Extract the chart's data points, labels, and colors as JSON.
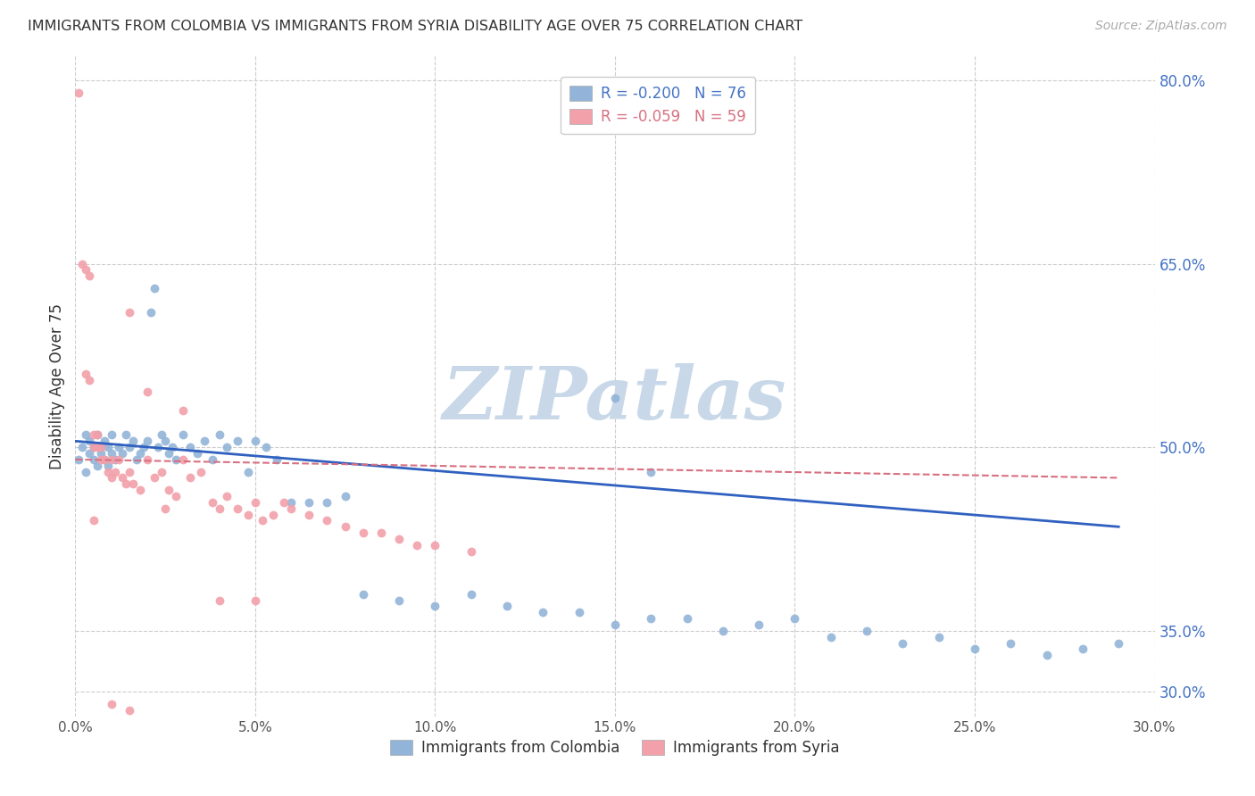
{
  "title": "IMMIGRANTS FROM COLOMBIA VS IMMIGRANTS FROM SYRIA DISABILITY AGE OVER 75 CORRELATION CHART",
  "source": "Source: ZipAtlas.com",
  "ylabel": "Disability Age Over 75",
  "xlim": [
    0.0,
    0.3
  ],
  "ylim": [
    0.28,
    0.82
  ],
  "xticks": [
    0.0,
    0.05,
    0.1,
    0.15,
    0.2,
    0.25,
    0.3
  ],
  "xtick_labels": [
    "0.0%",
    "5.0%",
    "10.0%",
    "15.0%",
    "20.0%",
    "25.0%",
    "30.0%"
  ],
  "yticks_right": [
    0.3,
    0.35,
    0.5,
    0.65,
    0.8
  ],
  "ytick_right_labels": [
    "30.0%",
    "35.0%",
    "50.0%",
    "65.0%",
    "80.0%"
  ],
  "colombia_color": "#92b4d8",
  "syria_color": "#f2a0aa",
  "colombia_R": -0.2,
  "colombia_N": 76,
  "syria_R": -0.059,
  "syria_N": 59,
  "trend_colombia_color": "#3060c0",
  "trend_syria_color": "#d87080",
  "watermark": "ZIPatlas",
  "watermark_color": "#c8d8e8",
  "legend_label_colombia": "Immigrants from Colombia",
  "legend_label_syria": "Immigrants from Syria",
  "colombia_x": [
    0.001,
    0.002,
    0.003,
    0.003,
    0.004,
    0.004,
    0.005,
    0.005,
    0.006,
    0.006,
    0.007,
    0.007,
    0.008,
    0.008,
    0.009,
    0.009,
    0.01,
    0.01,
    0.011,
    0.012,
    0.013,
    0.014,
    0.015,
    0.016,
    0.017,
    0.018,
    0.019,
    0.02,
    0.021,
    0.022,
    0.023,
    0.024,
    0.025,
    0.026,
    0.027,
    0.028,
    0.03,
    0.032,
    0.034,
    0.036,
    0.038,
    0.04,
    0.042,
    0.045,
    0.048,
    0.05,
    0.053,
    0.056,
    0.06,
    0.065,
    0.07,
    0.075,
    0.08,
    0.09,
    0.1,
    0.11,
    0.12,
    0.13,
    0.14,
    0.15,
    0.16,
    0.17,
    0.18,
    0.19,
    0.2,
    0.21,
    0.22,
    0.23,
    0.24,
    0.25,
    0.26,
    0.27,
    0.28,
    0.29,
    0.15,
    0.16
  ],
  "colombia_y": [
    0.49,
    0.5,
    0.48,
    0.51,
    0.495,
    0.505,
    0.49,
    0.5,
    0.485,
    0.51,
    0.5,
    0.495,
    0.49,
    0.505,
    0.485,
    0.5,
    0.495,
    0.51,
    0.49,
    0.5,
    0.495,
    0.51,
    0.5,
    0.505,
    0.49,
    0.495,
    0.5,
    0.505,
    0.61,
    0.63,
    0.5,
    0.51,
    0.505,
    0.495,
    0.5,
    0.49,
    0.51,
    0.5,
    0.495,
    0.505,
    0.49,
    0.51,
    0.5,
    0.505,
    0.48,
    0.505,
    0.5,
    0.49,
    0.455,
    0.455,
    0.455,
    0.46,
    0.38,
    0.375,
    0.37,
    0.38,
    0.37,
    0.365,
    0.365,
    0.355,
    0.36,
    0.36,
    0.35,
    0.355,
    0.36,
    0.345,
    0.35,
    0.34,
    0.345,
    0.335,
    0.34,
    0.33,
    0.335,
    0.34,
    0.54,
    0.48
  ],
  "syria_x": [
    0.001,
    0.002,
    0.003,
    0.003,
    0.004,
    0.004,
    0.005,
    0.005,
    0.006,
    0.006,
    0.007,
    0.007,
    0.008,
    0.009,
    0.01,
    0.01,
    0.011,
    0.012,
    0.013,
    0.014,
    0.015,
    0.016,
    0.018,
    0.02,
    0.022,
    0.024,
    0.026,
    0.028,
    0.03,
    0.032,
    0.035,
    0.038,
    0.04,
    0.042,
    0.045,
    0.048,
    0.05,
    0.052,
    0.055,
    0.058,
    0.06,
    0.065,
    0.07,
    0.075,
    0.08,
    0.085,
    0.09,
    0.095,
    0.1,
    0.11,
    0.015,
    0.02,
    0.03,
    0.04,
    0.05,
    0.005,
    0.01,
    0.015,
    0.025
  ],
  "syria_y": [
    0.79,
    0.65,
    0.645,
    0.56,
    0.555,
    0.64,
    0.5,
    0.51,
    0.5,
    0.51,
    0.49,
    0.5,
    0.49,
    0.48,
    0.49,
    0.475,
    0.48,
    0.49,
    0.475,
    0.47,
    0.48,
    0.47,
    0.465,
    0.49,
    0.475,
    0.48,
    0.465,
    0.46,
    0.49,
    0.475,
    0.48,
    0.455,
    0.45,
    0.46,
    0.45,
    0.445,
    0.455,
    0.44,
    0.445,
    0.455,
    0.45,
    0.445,
    0.44,
    0.435,
    0.43,
    0.43,
    0.425,
    0.42,
    0.42,
    0.415,
    0.61,
    0.545,
    0.53,
    0.375,
    0.375,
    0.44,
    0.29,
    0.285,
    0.45
  ]
}
